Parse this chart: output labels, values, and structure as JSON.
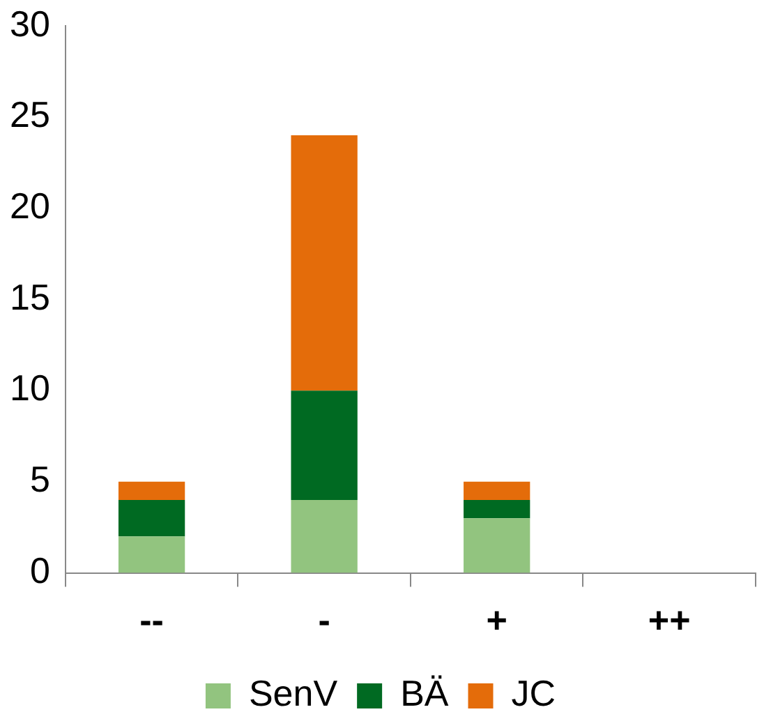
{
  "chart_data": {
    "type": "bar",
    "stacked": true,
    "categories": [
      "--",
      "-",
      "+",
      "++"
    ],
    "series": [
      {
        "name": "SenV",
        "color": "#92c47f",
        "values": [
          2,
          4,
          3,
          0
        ]
      },
      {
        "name": "BÄ",
        "color": "#006a22",
        "values": [
          2,
          6,
          1,
          0
        ]
      },
      {
        "name": "JC",
        "color": "#e46c0a",
        "values": [
          1,
          14,
          1,
          0
        ]
      }
    ],
    "ylim": [
      0,
      30
    ],
    "yticks": [
      0,
      5,
      10,
      15,
      20,
      25,
      30
    ],
    "grid": false,
    "legend": "bottom"
  }
}
